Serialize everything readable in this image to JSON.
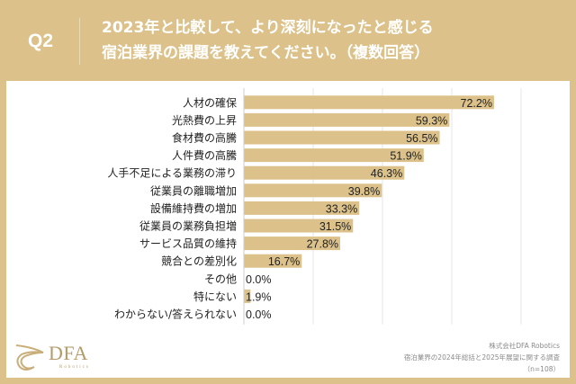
{
  "header": {
    "question_label": "Q2",
    "title_line1": "2023年と比較して、より深刻になったと感じる",
    "title_line2": "宿泊業界の課題を教えてください。（複数回答）"
  },
  "logo": {
    "name": "DFA",
    "sub": "Robotics"
  },
  "source": {
    "line1": "株式会社DFA Robotics",
    "line2": "宿泊業界の2024年総括と2025年展望に関する調査",
    "line3": "（n=108）"
  },
  "colors": {
    "background": "#dcc28a",
    "bar": "#dcc28a",
    "grid": "#e6e6e6",
    "axis": "#cccccc",
    "text": "#222222"
  },
  "chart_data": {
    "type": "bar",
    "orientation": "horizontal",
    "title": "2023年と比較して、より深刻になったと感じる宿泊業界の課題を教えてください。（複数回答）",
    "xlabel": "",
    "ylabel": "",
    "xlim": [
      0,
      90
    ],
    "gridlines": [
      20,
      40,
      60,
      80
    ],
    "grid": true,
    "value_suffix": "%",
    "categories": [
      "人材の確保",
      "光熱費の上昇",
      "食材費の高騰",
      "人件費の高騰",
      "人手不足による業務の滞り",
      "従業員の離職増加",
      "設備維持費の増加",
      "従業員の業務負担増",
      "サービス品質の維持",
      "競合との差別化",
      "その他",
      "特にない",
      "わからない/答えられない"
    ],
    "values": [
      72.2,
      59.3,
      56.5,
      51.9,
      46.3,
      39.8,
      33.3,
      31.5,
      27.8,
      16.7,
      0.0,
      1.9,
      0.0
    ],
    "labels": [
      "72.2%",
      "59.3%",
      "56.5%",
      "51.9%",
      "46.3%",
      "39.8%",
      "33.3%",
      "31.5%",
      "27.8%",
      "16.7%",
      "0.0%",
      "1.9%",
      "0.0%"
    ]
  }
}
